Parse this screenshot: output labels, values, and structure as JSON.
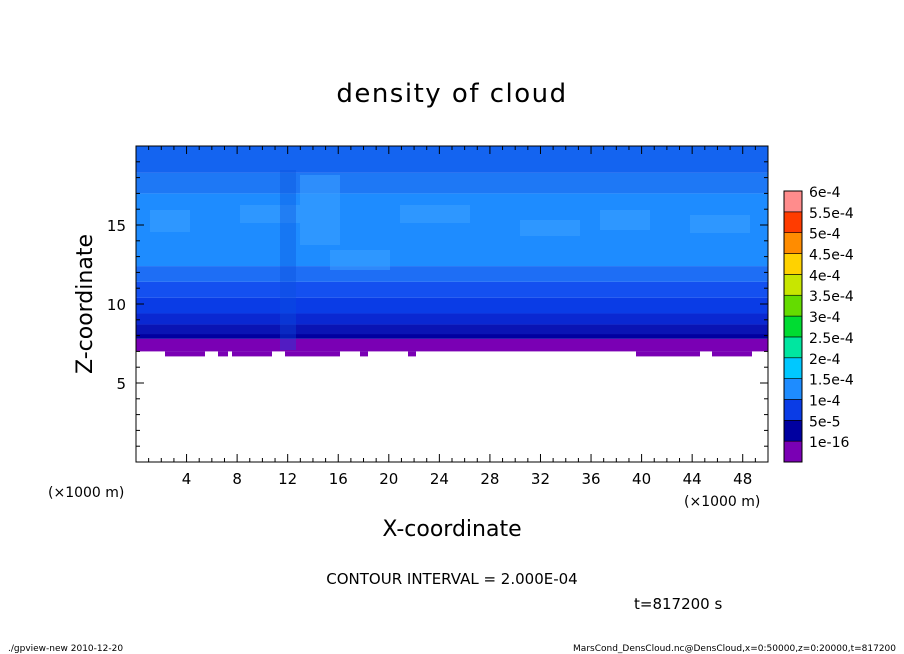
{
  "chart_data": {
    "type": "heatmap",
    "title": "density of cloud",
    "xlabel": "X-coordinate",
    "ylabel": "Z-coordinate",
    "x_unit_left": "(×1000 m)",
    "x_unit_right": "(×1000 m)",
    "xlim": [
      0,
      50
    ],
    "ylim": [
      0,
      20
    ],
    "x_ticks": [
      "4",
      "8",
      "12",
      "16",
      "20",
      "24",
      "28",
      "32",
      "36",
      "40",
      "44",
      "48"
    ],
    "x_tick_values": [
      4,
      8,
      12,
      16,
      20,
      24,
      28,
      32,
      36,
      40,
      44,
      48
    ],
    "y_ticks": [
      "5",
      "10",
      "15"
    ],
    "y_tick_values": [
      5,
      10,
      15
    ],
    "levels": [
      {
        "label": "1e-16",
        "value": 1e-16,
        "color": "#7a00b4"
      },
      {
        "label": "5e-5",
        "value": 5e-05,
        "color": "#0000a0"
      },
      {
        "label": "1e-4",
        "value": 0.0001,
        "color": "#0a3ce6"
      },
      {
        "label": "1.5e-4",
        "value": 0.00015,
        "color": "#1e8cff"
      },
      {
        "label": "2e-4",
        "value": 0.0002,
        "color": "#00c8ff"
      },
      {
        "label": "2.5e-4",
        "value": 0.00025,
        "color": "#00e6a0"
      },
      {
        "label": "3e-4",
        "value": 0.0003,
        "color": "#00dc32"
      },
      {
        "label": "3.5e-4",
        "value": 0.00035,
        "color": "#64dc00"
      },
      {
        "label": "4e-4",
        "value": 0.0004,
        "color": "#c8e600"
      },
      {
        "label": "4.5e-4",
        "value": 0.00045,
        "color": "#ffd200"
      },
      {
        "label": "5e-4",
        "value": 0.0005,
        "color": "#ff8c00"
      },
      {
        "label": "5.5e-4",
        "value": 0.00055,
        "color": "#ff3c00"
      },
      {
        "label": "6e-4",
        "value": 0.0006,
        "color": "#ff8c8c"
      }
    ],
    "bands": [
      {
        "z0": 7.0,
        "z1": 7.8,
        "color": "#7a00b4"
      },
      {
        "z0": 7.8,
        "z1": 8.1,
        "color": "#0000a0"
      },
      {
        "z0": 8.1,
        "z1": 8.7,
        "color": "#0a14b4"
      },
      {
        "z0": 8.7,
        "z1": 9.4,
        "color": "#0a28d2"
      },
      {
        "z0": 9.4,
        "z1": 10.4,
        "color": "#0a3ce6"
      },
      {
        "z0": 10.4,
        "z1": 11.4,
        "color": "#1450f0"
      },
      {
        "z0": 11.4,
        "z1": 12.4,
        "color": "#1e6ef5"
      },
      {
        "z0": 12.4,
        "z1": 17.0,
        "color": "#1e8cff"
      },
      {
        "z0": 17.0,
        "z1": 18.3,
        "color": "#1e78f5"
      },
      {
        "z0": 18.3,
        "z1": 20.0,
        "color": "#1464f0"
      }
    ],
    "contour_interval_text": "CONTOUR INTERVAL = 2.000E-04",
    "time_text": "t=817200 s"
  },
  "footer": {
    "left": "./gpview-new   2010-12-20",
    "right": "MarsCond_DensCloud.nc@DensCloud,x=0:50000,z=0:20000,t=817200"
  }
}
